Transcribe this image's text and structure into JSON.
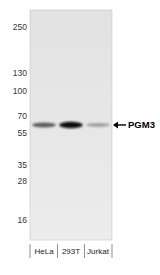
{
  "chart_data": {
    "type": "western_blot",
    "target": "PGM3",
    "target_kda": 62,
    "lanes": [
      "HeLa",
      "293T",
      "Jurkat"
    ],
    "band_intensity": [
      0.6,
      1.0,
      0.2
    ],
    "ylim": [
      320,
      12
    ],
    "yticks": [
      250,
      130,
      100,
      70,
      55,
      35,
      28,
      16
    ],
    "log": "y"
  }
}
